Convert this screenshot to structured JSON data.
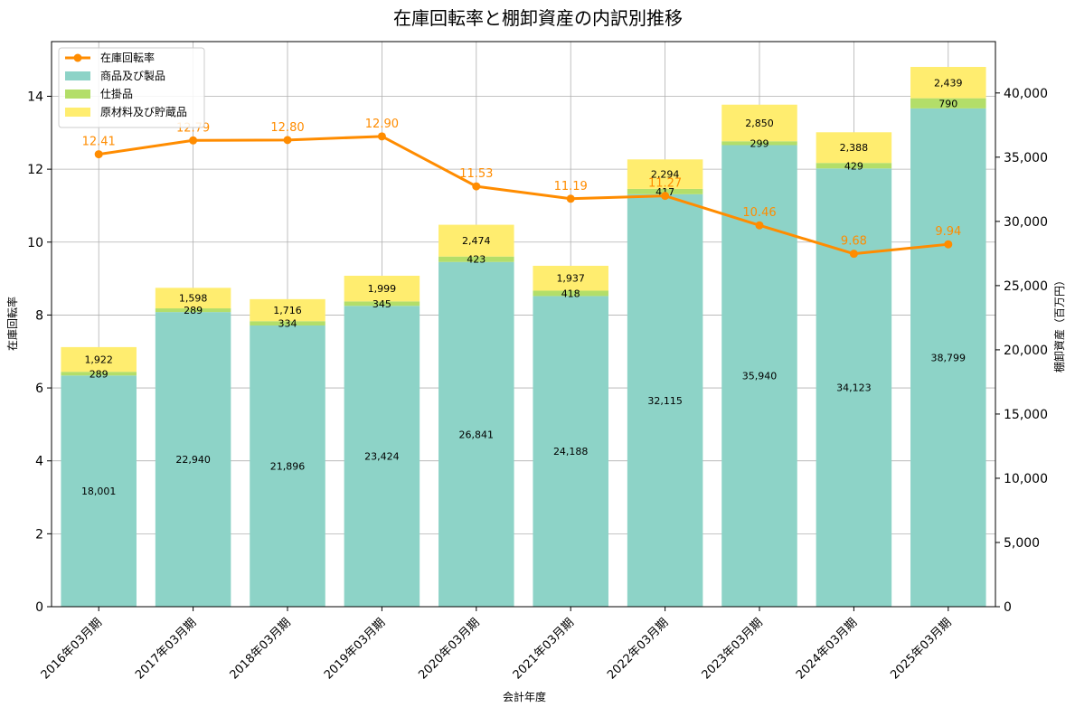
{
  "chart_data": {
    "type": "bar",
    "title": "在庫回転率と棚卸資産の内訳別推移",
    "xlabel": "会計年度",
    "ylabel_left": "在庫回転率",
    "ylabel_right": "棚卸資産（百万円）",
    "categories": [
      "2016年03月期",
      "2017年03月期",
      "2018年03月期",
      "2019年03月期",
      "2020年03月期",
      "2021年03月期",
      "2022年03月期",
      "2023年03月期",
      "2024年03月期",
      "2025年03月期"
    ],
    "left_ylim": [
      0,
      15.5
    ],
    "left_ticks": [
      0,
      2,
      4,
      6,
      8,
      10,
      12,
      14
    ],
    "right_ylim": [
      0,
      44000
    ],
    "right_ticks": [
      0,
      5000,
      10000,
      15000,
      20000,
      25000,
      30000,
      35000,
      40000
    ],
    "right_tick_labels": [
      "0",
      "5,000",
      "10,000",
      "15,000",
      "20,000",
      "25,000",
      "30,000",
      "35,000",
      "40,000"
    ],
    "grid": true,
    "legend_position": "top-left",
    "series": [
      {
        "name": "商品及び製品",
        "kind": "stacked-bar",
        "axis": "right",
        "color": "#8dd3c7",
        "values": [
          18001,
          22940,
          21896,
          23424,
          26841,
          24188,
          32115,
          35940,
          34123,
          38799
        ],
        "labels": [
          "18,001",
          "22,940",
          "21,896",
          "23,424",
          "26,841",
          "24,188",
          "32,115",
          "35,940",
          "34,123",
          "38,799"
        ]
      },
      {
        "name": "仕掛品",
        "kind": "stacked-bar",
        "axis": "right",
        "color": "#b3de69",
        "values": [
          289,
          289,
          334,
          345,
          423,
          418,
          417,
          299,
          429,
          790
        ],
        "labels": [
          "289",
          "289",
          "334",
          "345",
          "423",
          "418",
          "417",
          "299",
          "429",
          "790"
        ]
      },
      {
        "name": "原材料及び貯蔵品",
        "kind": "stacked-bar",
        "axis": "right",
        "color": "#ffed6f",
        "values": [
          1922,
          1598,
          1716,
          1999,
          2474,
          1937,
          2294,
          2850,
          2388,
          2439
        ],
        "labels": [
          "1,922",
          "1,598",
          "1,716",
          "1,999",
          "2,474",
          "1,937",
          "2,294",
          "2,850",
          "2,388",
          "2,439"
        ]
      },
      {
        "name": "在庫回転率",
        "kind": "line",
        "axis": "left",
        "color": "#ff8c00",
        "values": [
          12.41,
          12.79,
          12.8,
          12.9,
          11.53,
          11.19,
          11.27,
          10.46,
          9.68,
          9.94
        ],
        "labels": [
          "12.41",
          "12.79",
          "12.80",
          "12.90",
          "11.53",
          "11.19",
          "11.27",
          "10.46",
          "9.68",
          "9.94"
        ]
      }
    ]
  }
}
